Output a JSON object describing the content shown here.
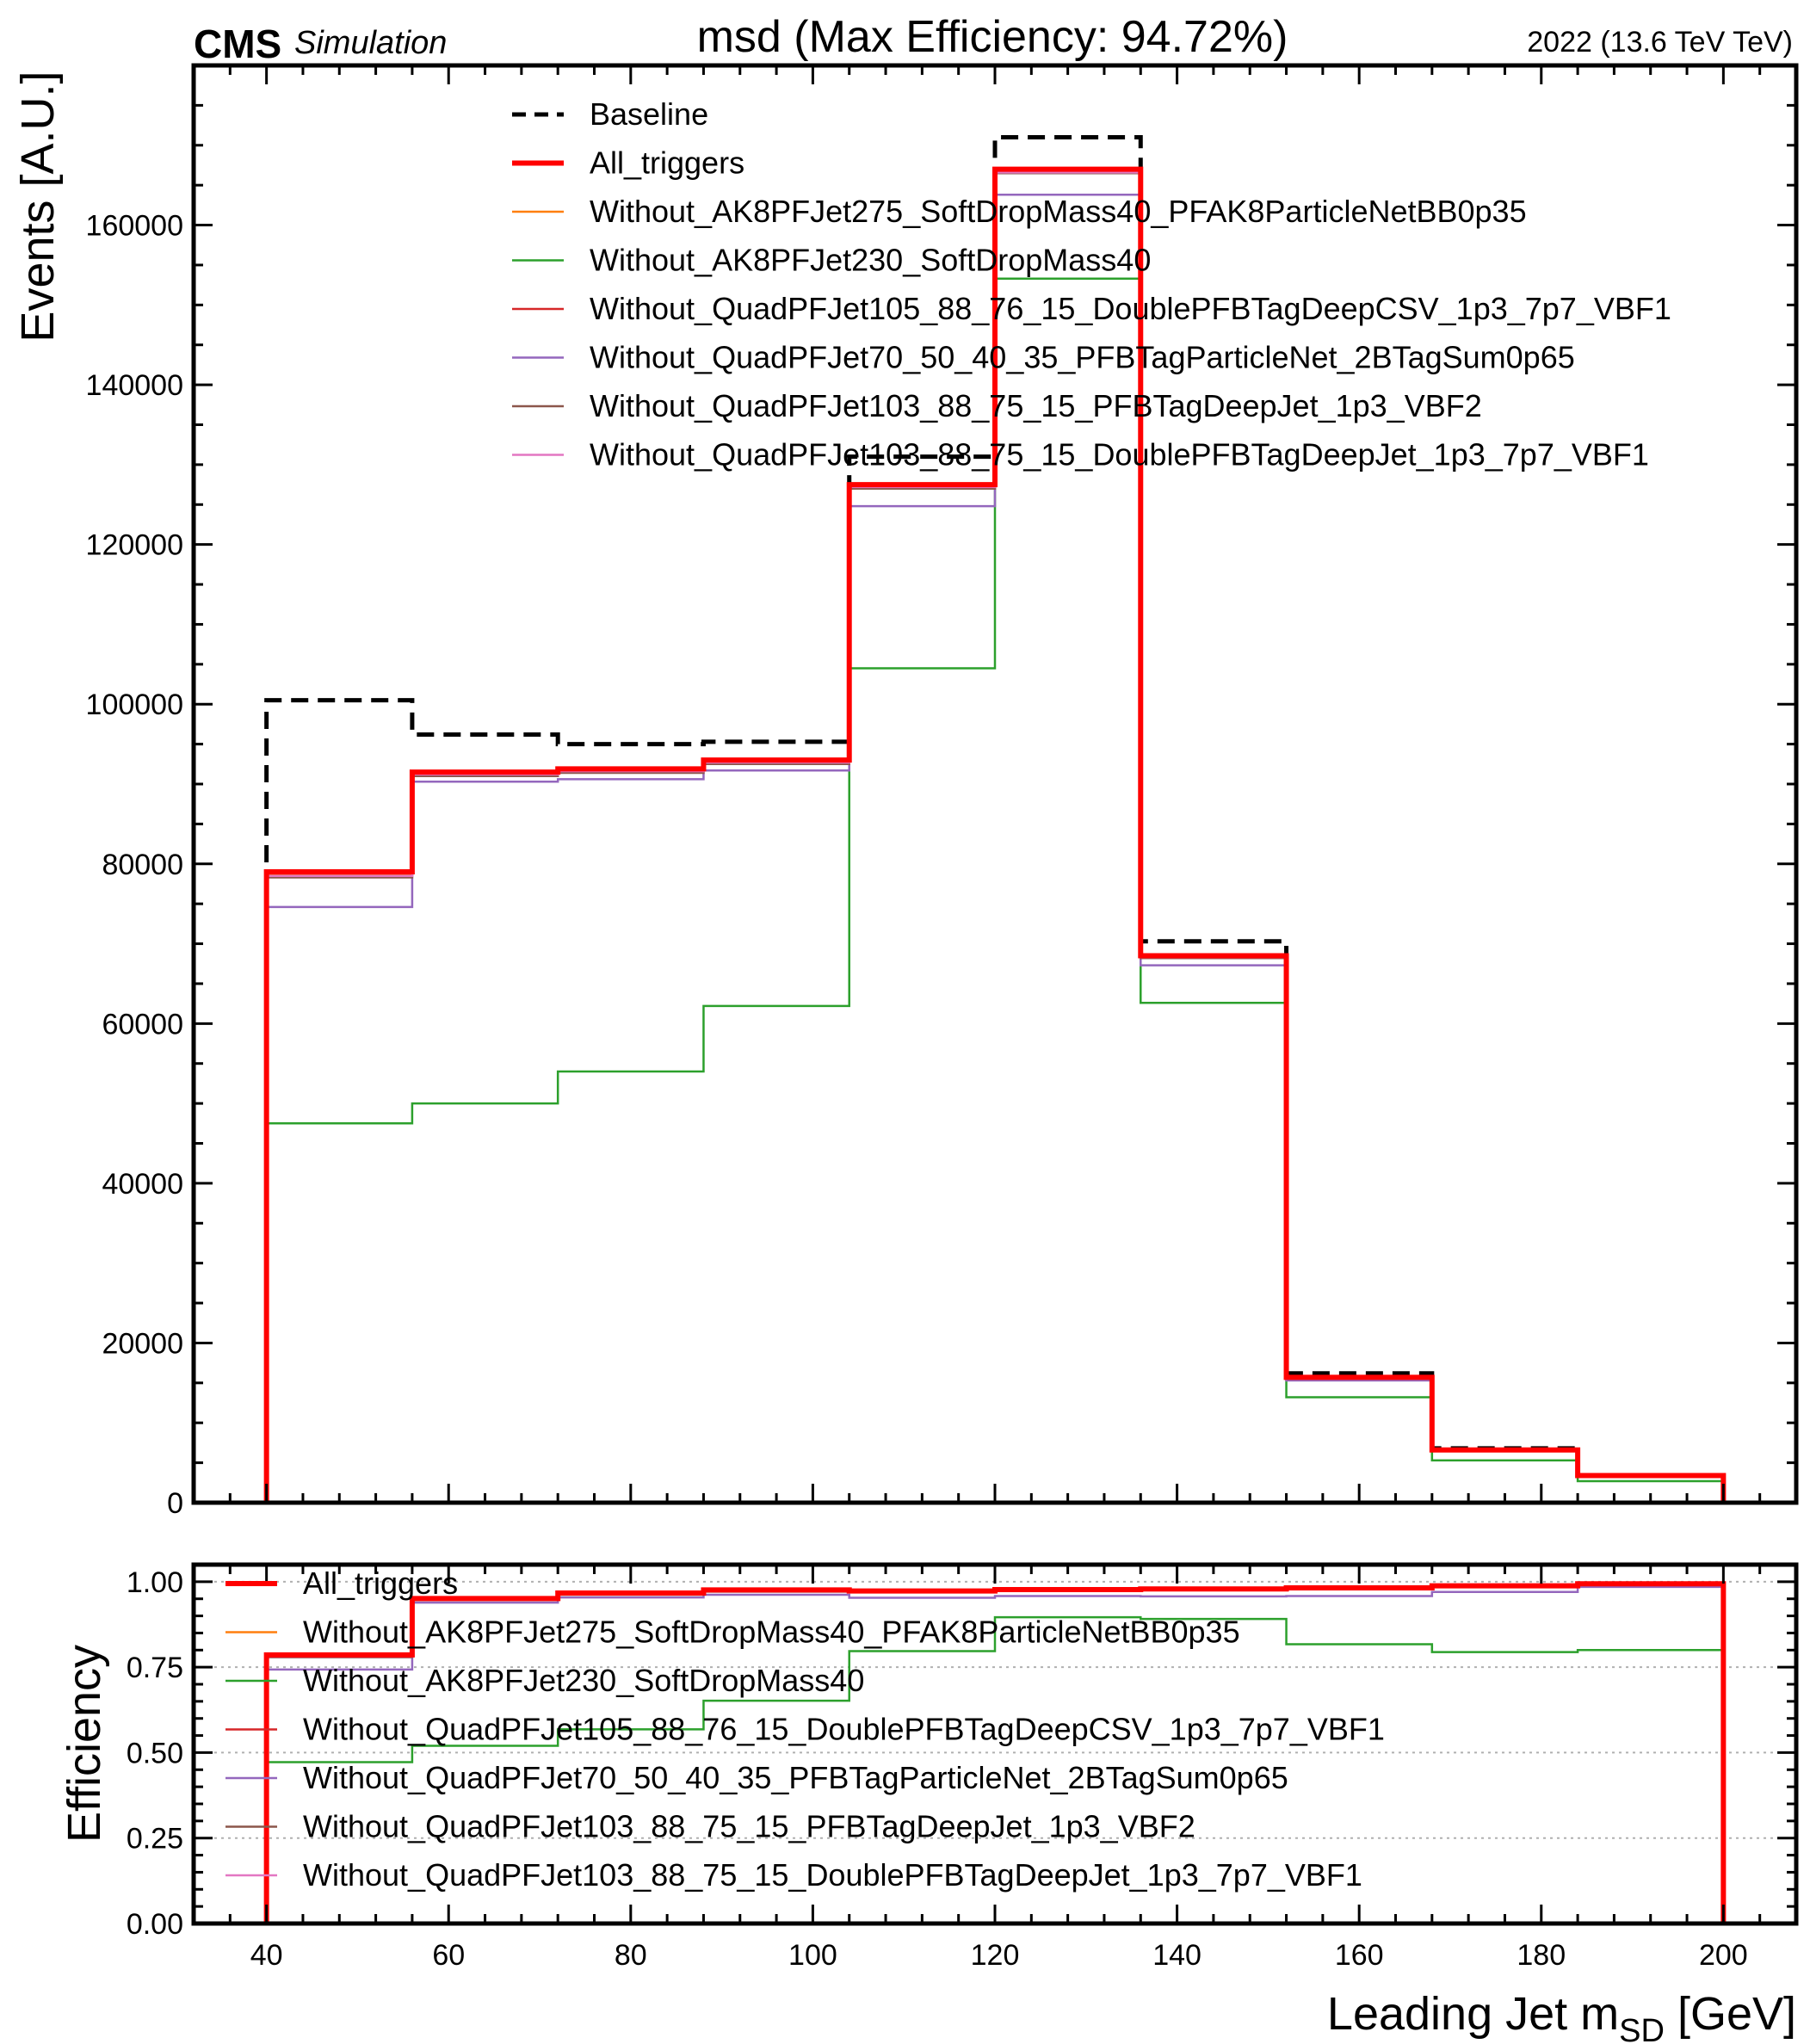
{
  "header": {
    "cms_label": "CMS",
    "simulation_label": "Simulation",
    "title": "msd (Max Efficiency: 94.72%)",
    "energy_label": "2022 (13.6 TeV TeV)"
  },
  "chart_data": [
    {
      "type": "step-histogram",
      "panel": "top",
      "xlabel": "",
      "ylabel": "Events [A.U.]",
      "xlim": [
        32,
        208
      ],
      "ylim": [
        0,
        180000
      ],
      "yticks": [
        0,
        20000,
        40000,
        60000,
        80000,
        100000,
        120000,
        140000,
        160000
      ],
      "ytick_labels": [
        "0",
        "20000",
        "40000",
        "60000",
        "80000",
        "100000",
        "120000",
        "140000",
        "160000"
      ],
      "bin_edges": [
        40,
        56,
        72,
        88,
        104,
        120,
        136,
        152,
        168,
        184,
        200
      ],
      "legend_position": "upper-center",
      "series": [
        {
          "name": "Baseline",
          "color": "#000000",
          "style": "dashed",
          "values": [
            100500,
            96200,
            95000,
            95300,
            131000,
            171000,
            70300,
            16200,
            6800,
            3400
          ]
        },
        {
          "name": "All_triggers",
          "color": "#ff0000",
          "style": "solid-thick",
          "values": [
            79000,
            91500,
            91900,
            93000,
            127500,
            167000,
            68500,
            15700,
            6600,
            3400
          ]
        },
        {
          "name": "Without_AK8PFJet275_SoftDropMass40_PFAK8ParticleNetBB0p35",
          "color": "#ff7f0e",
          "style": "solid",
          "values": [
            78600,
            91300,
            91700,
            92800,
            127300,
            166700,
            68300,
            15600,
            6550,
            3380
          ]
        },
        {
          "name": "Without_AK8PFJet230_SoftDropMass40",
          "color": "#2ca02c",
          "style": "solid",
          "values": [
            47500,
            50000,
            54000,
            62200,
            104500,
            153300,
            62600,
            13200,
            5300,
            2700
          ]
        },
        {
          "name": "Without_QuadPFJet105_88_76_15_DoublePFBTagDeepCSV_1p3_7p7_VBF1",
          "color": "#d62728",
          "style": "solid",
          "values": [
            78800,
            91400,
            91800,
            92900,
            127400,
            166900,
            68400,
            15650,
            6580,
            3390
          ]
        },
        {
          "name": "Without_QuadPFJet70_50_40_35_PFBTagParticleNet_2BTagSum0p65",
          "color": "#9467bd",
          "style": "solid",
          "values": [
            74600,
            90300,
            90600,
            91700,
            124800,
            163800,
            67300,
            15300,
            6450,
            3330
          ]
        },
        {
          "name": "Without_QuadPFJet103_88_75_15_PFBTagDeepJet_1p3_VBF2",
          "color": "#8c564b",
          "style": "solid",
          "values": [
            78300,
            91000,
            91400,
            92500,
            127000,
            166500,
            68200,
            15600,
            6550,
            3380
          ]
        },
        {
          "name": "Without_QuadPFJet103_88_75_15_DoublePFBTagDeepJet_1p3_7p7_VBF1",
          "color": "#e377c2",
          "style": "solid",
          "values": [
            78500,
            91200,
            91600,
            92700,
            127200,
            166600,
            68300,
            15600,
            6560,
            3385
          ]
        }
      ]
    },
    {
      "type": "step-histogram",
      "panel": "bottom",
      "xlabel": "Leading Jet m_SD [GeV]",
      "xlabel_main": "Leading Jet m",
      "xlabel_sub": "SD",
      "xlabel_unit": " [GeV]",
      "ylabel": "Efficiency",
      "xlim": [
        32,
        208
      ],
      "ylim": [
        0,
        1.05
      ],
      "xticks": [
        40,
        60,
        80,
        100,
        120,
        140,
        160,
        180,
        200
      ],
      "xtick_labels": [
        "40",
        "60",
        "80",
        "100",
        "120",
        "140",
        "160",
        "180",
        "200"
      ],
      "yticks": [
        0,
        0.25,
        0.5,
        0.75,
        1.0
      ],
      "ytick_labels": [
        "0.00",
        "0.25",
        "0.50",
        "0.75",
        "1.00"
      ],
      "grid": "horizontal-dotted",
      "bin_edges": [
        40,
        56,
        72,
        88,
        104,
        120,
        136,
        152,
        168,
        184,
        200
      ],
      "legend_position": "upper-left",
      "series": [
        {
          "name": "All_triggers",
          "color": "#ff0000",
          "style": "solid-thick",
          "values": [
            0.786,
            0.951,
            0.967,
            0.976,
            0.973,
            0.977,
            0.979,
            0.982,
            0.988,
            0.994
          ]
        },
        {
          "name": "Without_AK8PFJet275_SoftDropMass40_PFAK8ParticleNetBB0p35",
          "color": "#ff7f0e",
          "style": "solid",
          "values": [
            0.782,
            0.949,
            0.965,
            0.974,
            0.972,
            0.975,
            0.978,
            0.981,
            0.986,
            0.993
          ]
        },
        {
          "name": "Without_AK8PFJet230_SoftDropMass40",
          "color": "#2ca02c",
          "style": "solid",
          "values": [
            0.472,
            0.52,
            0.568,
            0.652,
            0.797,
            0.896,
            0.891,
            0.817,
            0.794,
            0.8
          ]
        },
        {
          "name": "Without_QuadPFJet105_88_76_15_DoublePFBTagDeepCSV_1p3_7p7_VBF1",
          "color": "#d62728",
          "style": "solid",
          "values": [
            0.784,
            0.95,
            0.966,
            0.975,
            0.972,
            0.976,
            0.978,
            0.981,
            0.987,
            0.993
          ]
        },
        {
          "name": "Without_QuadPFJet70_50_40_35_PFBTagParticleNet_2BTagSum0p65",
          "color": "#9467bd",
          "style": "solid",
          "values": [
            0.743,
            0.939,
            0.954,
            0.962,
            0.953,
            0.958,
            0.957,
            0.958,
            0.97,
            0.985
          ]
        },
        {
          "name": "Without_QuadPFJet103_88_75_15_PFBTagDeepJet_1p3_VBF2",
          "color": "#8c564b",
          "style": "solid",
          "values": [
            0.779,
            0.946,
            0.962,
            0.971,
            0.969,
            0.974,
            0.975,
            0.979,
            0.985,
            0.992
          ]
        },
        {
          "name": "Without_QuadPFJet103_88_75_15_DoublePFBTagDeepJet_1p3_7p7_VBF1",
          "color": "#e377c2",
          "style": "solid",
          "values": [
            0.781,
            0.948,
            0.964,
            0.973,
            0.971,
            0.975,
            0.977,
            0.98,
            0.986,
            0.993
          ]
        }
      ]
    }
  ]
}
